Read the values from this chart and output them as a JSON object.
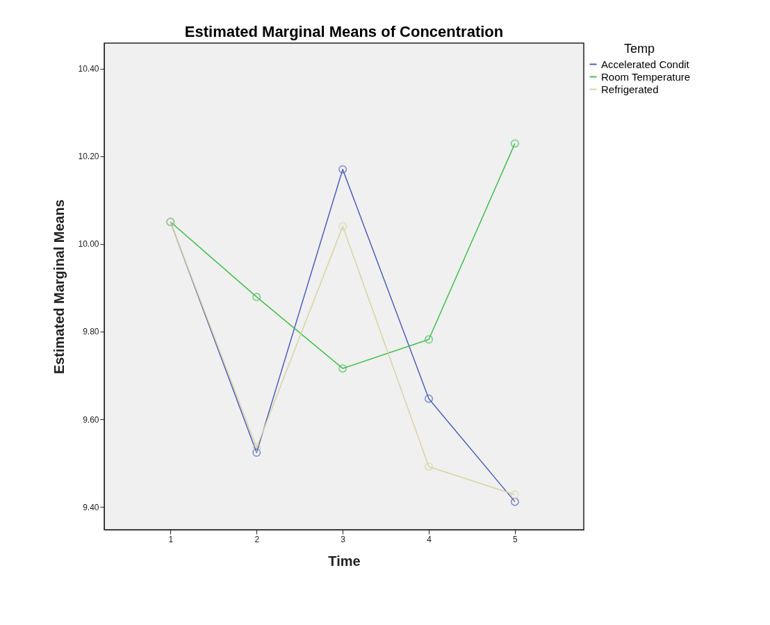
{
  "chart_data": {
    "type": "line",
    "title": "Estimated Marginal Means of Concentration",
    "xlabel": "Time",
    "ylabel": "Estimated Marginal Means",
    "legend_title": "Temp",
    "x": [
      1,
      2,
      3,
      4,
      5
    ],
    "xlim": [
      0.23,
      5.8
    ],
    "xticks": [
      1,
      2,
      3,
      4,
      5
    ],
    "ylim": [
      9.348,
      10.458
    ],
    "yticks": [
      {
        "value": 9.4,
        "label": "9.40"
      },
      {
        "value": 9.6,
        "label": "9.60"
      },
      {
        "value": 9.8,
        "label": "9.80"
      },
      {
        "value": 10.0,
        "label": "10.00"
      },
      {
        "value": 10.2,
        "label": "10.20"
      },
      {
        "value": 10.4,
        "label": "10.40"
      }
    ],
    "series": [
      {
        "name": "Accelerated Condit",
        "color": "#4b5fbf",
        "values": [
          10.05,
          9.524,
          10.17,
          9.647,
          9.412
        ]
      },
      {
        "name": "Room Temperature",
        "color": "#3cc04a",
        "values": [
          10.05,
          9.879,
          9.716,
          9.782,
          10.229
        ]
      },
      {
        "name": "Refrigerated",
        "color": "#d8d3a0",
        "values": [
          10.05,
          9.535,
          10.04,
          9.492,
          9.428
        ]
      }
    ],
    "marker": "circle",
    "line_style": "solid",
    "grid": false,
    "legend": "top right"
  }
}
